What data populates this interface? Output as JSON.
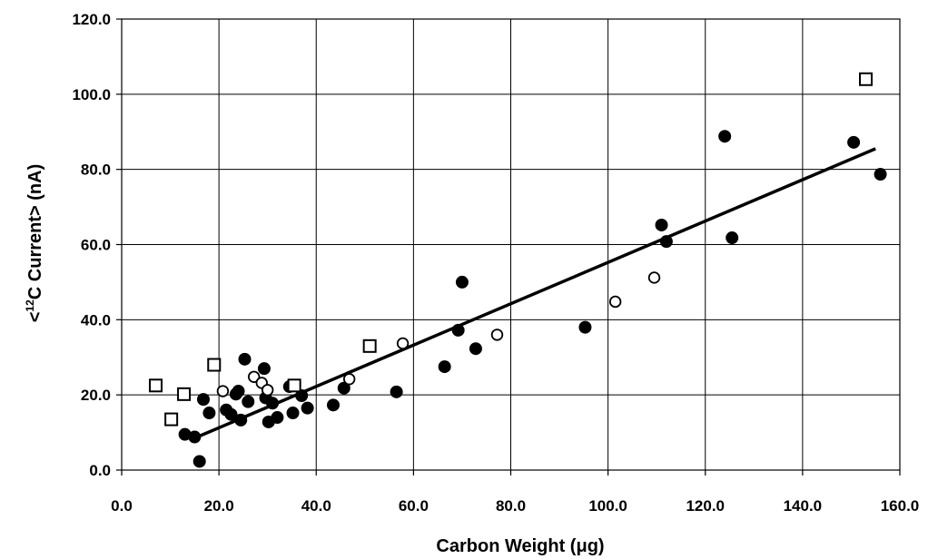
{
  "chart_data": {
    "type": "scatter",
    "title": "",
    "xlabel": "Carbon Weight (μg)",
    "ylabel": {
      "prefix": "<",
      "sup": "12",
      "rest": "C Current> (nA)"
    },
    "xlim": [
      0,
      160
    ],
    "ylim": [
      0,
      120
    ],
    "xticks": [
      "0.0",
      "20.0",
      "40.0",
      "60.0",
      "80.0",
      "100.0",
      "120.0",
      "140.0",
      "160.0"
    ],
    "yticks": [
      "0.0",
      "20.0",
      "40.0",
      "60.0",
      "80.0",
      "100.0",
      "120.0"
    ],
    "grid": true,
    "legend": "none",
    "series": [
      {
        "marker": "filled-circle",
        "color": "#000000",
        "points": [
          [
            13.0,
            9.5
          ],
          [
            15.0,
            8.8
          ],
          [
            16.0,
            2.3
          ],
          [
            16.8,
            18.8
          ],
          [
            18.0,
            15.2
          ],
          [
            21.5,
            16.0
          ],
          [
            22.5,
            14.8
          ],
          [
            23.5,
            20.2
          ],
          [
            24.0,
            21.0
          ],
          [
            24.5,
            13.3
          ],
          [
            25.3,
            29.5
          ],
          [
            26.0,
            18.2
          ],
          [
            29.3,
            27.0
          ],
          [
            29.6,
            19.2
          ],
          [
            30.2,
            12.8
          ],
          [
            31.0,
            17.8
          ],
          [
            32.0,
            14.0
          ],
          [
            34.5,
            22.2
          ],
          [
            35.2,
            15.2
          ],
          [
            37.0,
            19.8
          ],
          [
            38.2,
            16.5
          ],
          [
            43.5,
            17.3
          ],
          [
            45.7,
            21.8
          ],
          [
            56.5,
            20.8
          ],
          [
            66.4,
            27.5
          ],
          [
            69.2,
            37.2
          ],
          [
            70.0,
            50.0
          ],
          [
            72.8,
            32.3
          ],
          [
            95.3,
            38.0
          ],
          [
            111.0,
            65.2
          ],
          [
            112.0,
            60.8
          ],
          [
            124.0,
            88.8
          ],
          [
            125.5,
            61.8
          ],
          [
            150.5,
            87.2
          ],
          [
            156.0,
            78.7
          ]
        ]
      },
      {
        "marker": "open-circle",
        "color": "#000000",
        "points": [
          [
            20.8,
            21.0
          ],
          [
            27.2,
            24.8
          ],
          [
            28.8,
            23.2
          ],
          [
            30.0,
            21.3
          ],
          [
            46.8,
            24.2
          ],
          [
            57.8,
            33.7
          ],
          [
            77.2,
            36.0
          ],
          [
            101.5,
            44.8
          ],
          [
            109.5,
            51.2
          ]
        ]
      },
      {
        "marker": "open-square",
        "color": "#000000",
        "points": [
          [
            7.0,
            22.5
          ],
          [
            10.2,
            13.5
          ],
          [
            12.8,
            20.2
          ],
          [
            19.0,
            28.0
          ],
          [
            35.5,
            22.5
          ],
          [
            51.0,
            33.0
          ],
          [
            153.0,
            104.0
          ]
        ]
      }
    ],
    "trendline": {
      "x": [
        15.0,
        155.0
      ],
      "y": [
        8.5,
        85.5
      ]
    }
  }
}
